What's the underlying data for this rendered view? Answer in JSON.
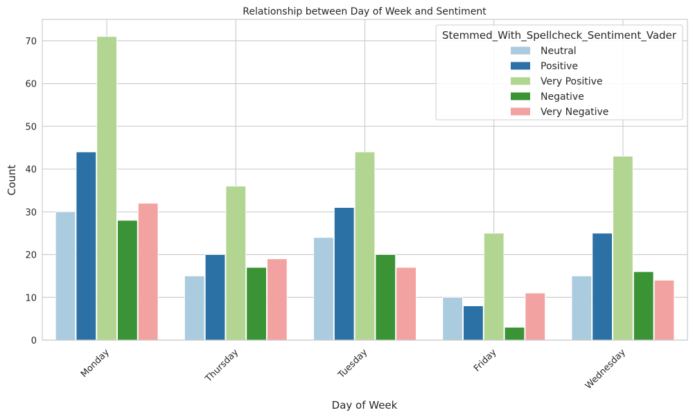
{
  "chart_data": {
    "type": "bar",
    "title": "Relationship between Day of Week and Sentiment",
    "xlabel": "Day of Week",
    "ylabel": "Count",
    "categories": [
      "Monday",
      "Thursday",
      "Tuesday",
      "Friday",
      "Wednesday"
    ],
    "ylim": [
      0,
      75
    ],
    "yticks": [
      0,
      10,
      20,
      30,
      40,
      50,
      60,
      70
    ],
    "grid": true,
    "legend_title": "Stemmed_With_Spellcheck_Sentiment_Vader",
    "legend_position": "top-right",
    "series": [
      {
        "name": "Neutral",
        "color": "#abcbdf",
        "values": [
          30,
          15,
          24,
          10,
          15
        ]
      },
      {
        "name": "Positive",
        "color": "#2b71a5",
        "values": [
          44,
          20,
          31,
          8,
          25
        ]
      },
      {
        "name": "Very Positive",
        "color": "#b2d692",
        "values": [
          71,
          36,
          44,
          25,
          43
        ]
      },
      {
        "name": "Negative",
        "color": "#3a9334",
        "values": [
          28,
          17,
          20,
          3,
          16
        ]
      },
      {
        "name": "Very Negative",
        "color": "#f2a3a1",
        "values": [
          32,
          19,
          17,
          11,
          14
        ]
      }
    ]
  }
}
